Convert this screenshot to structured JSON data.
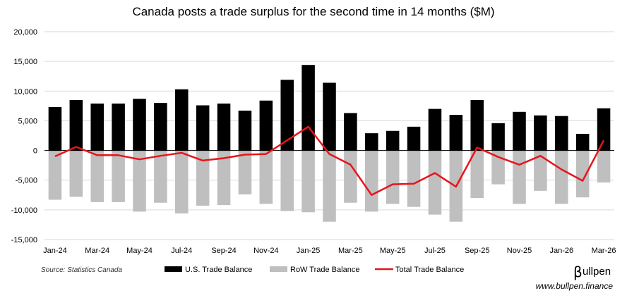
{
  "chart_data": {
    "type": "bar",
    "title": "Canada posts a trade surplus for the second time in 14 months ($M)",
    "ylim": [
      -15000,
      20000
    ],
    "yticks": [
      20000,
      15000,
      10000,
      5000,
      0,
      -5000,
      -10000,
      -15000
    ],
    "ytick_labels": [
      "20,000",
      "15,000",
      "10,000",
      "5,000",
      "0",
      "-5,000",
      "-10,000",
      "-15,000"
    ],
    "grid": true,
    "legend_position": "bottom",
    "categories": [
      "Jan-24",
      "Feb-24",
      "Mar-24",
      "Apr-24",
      "May-24",
      "Jun-24",
      "Jul-24",
      "Aug-24",
      "Sep-24",
      "Oct-24",
      "Nov-24",
      "Dec-24",
      "Jan-25",
      "Feb-25",
      "Mar-25",
      "Apr-25",
      "May-25",
      "Jun-25",
      "Jul-25",
      "Aug-25",
      "Sep-25",
      "Oct-25",
      "Nov-25",
      "Dec-25",
      "Jan-26",
      "Feb-26",
      "Mar-26"
    ],
    "tick_labels": [
      "Jan-24",
      "",
      "Mar-24",
      "",
      "May-24",
      "",
      "Jul-24",
      "",
      "Sep-24",
      "",
      "Nov-24",
      "",
      "Jan-25",
      "",
      "Mar-25",
      "",
      "May-25",
      "",
      "Jul-25",
      "",
      "Sep-25",
      "",
      "Nov-25",
      "",
      "Jan-26",
      "",
      "Mar-26"
    ],
    "series": [
      {
        "name": "U.S. Trade Balance",
        "kind": "bar",
        "color": "#000000",
        "values": [
          7300,
          8500,
          7900,
          7900,
          8700,
          8000,
          10300,
          7600,
          7900,
          6700,
          8400,
          11900,
          14400,
          11400,
          6300,
          2900,
          3300,
          4000,
          7000,
          6000,
          8500,
          4600,
          6500,
          5900,
          5800,
          2800,
          7100
        ]
      },
      {
        "name": "RoW Trade Balance",
        "kind": "bar",
        "color": "#bfbfbf",
        "values": [
          -8300,
          -7800,
          -8700,
          -8700,
          -10300,
          -8800,
          -10600,
          -9300,
          -9200,
          -7400,
          -9000,
          -10200,
          -10400,
          -12000,
          -8800,
          -10300,
          -9000,
          -9500,
          -10800,
          -12000,
          -8000,
          -5700,
          -9000,
          -6800,
          -9000,
          -7900,
          -5400
        ]
      },
      {
        "name": "Total Trade Balance",
        "kind": "line",
        "color": "#e8141b",
        "values": [
          -1000,
          600,
          -800,
          -800,
          -1500,
          -900,
          -400,
          -1700,
          -1300,
          -700,
          -600,
          1700,
          4000,
          -600,
          -2400,
          -7500,
          -5700,
          -5600,
          -3800,
          -6100,
          500,
          -1100,
          -2400,
          -900,
          -3200,
          -5100,
          1700
        ]
      }
    ]
  },
  "footer": {
    "source": "Source: Statistics Canada",
    "brand_mark": "β",
    "brand_name": "ullpen",
    "url": "www.bullpen.finance"
  }
}
